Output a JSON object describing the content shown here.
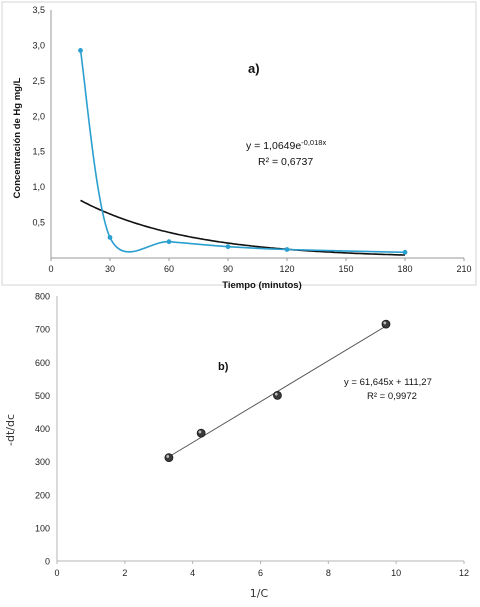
{
  "chart_data": [
    {
      "type": "scatter",
      "panel_label": "a)",
      "xlabel": "Tiempo (minutos)",
      "ylabel": "Concentración de Hg mg/L",
      "xlim": [
        0,
        210
      ],
      "ylim": [
        0,
        3.5
      ],
      "x_ticks": [
        "0",
        "30",
        "60",
        "90",
        "120",
        "150",
        "180",
        "210"
      ],
      "y_ticks": [
        "3,5",
        "3,0",
        "2,5",
        "2,0",
        "1,5",
        "1,0",
        "0,5"
      ],
      "series": [
        {
          "color": "#2a9fd0",
          "style": "smooth line with markers",
          "x": [
            15,
            30,
            60,
            90,
            120,
            180
          ],
          "y": [
            2.93,
            0.29,
            0.23,
            0.16,
            0.12,
            0.08
          ]
        },
        {
          "color": "#111111",
          "style": "exponential trendline",
          "x": [
            15,
            180
          ],
          "a": 1.0649,
          "b": -0.018
        }
      ],
      "equation": "y = 1,0649e",
      "equation_exp": "-0,018x",
      "r2": "R² = 0,6737",
      "grid": false
    },
    {
      "type": "scatter",
      "panel_label": "b)",
      "xlabel": "1/C",
      "ylabel": "-dt/dc",
      "xlim": [
        0,
        12
      ],
      "ylim": [
        0,
        800
      ],
      "x_ticks": [
        "0",
        "2",
        "4",
        "6",
        "8",
        "10",
        "12"
      ],
      "y_ticks": [
        "800",
        "700",
        "600",
        "500",
        "400",
        "300",
        "200",
        "100",
        "0"
      ],
      "series": [
        {
          "color": "#444444",
          "style": "markers",
          "x": [
            3.3,
            4.25,
            6.5,
            9.7
          ],
          "y": [
            312,
            386,
            500,
            715
          ]
        },
        {
          "color": "#555555",
          "style": "linear trendline",
          "x": [
            3.3,
            9.7
          ],
          "slope": 61.645,
          "intercept": 111.27
        }
      ],
      "equation": "y = 61,645x + 111,27",
      "r2": "R² = 0,9972",
      "grid": false
    }
  ]
}
